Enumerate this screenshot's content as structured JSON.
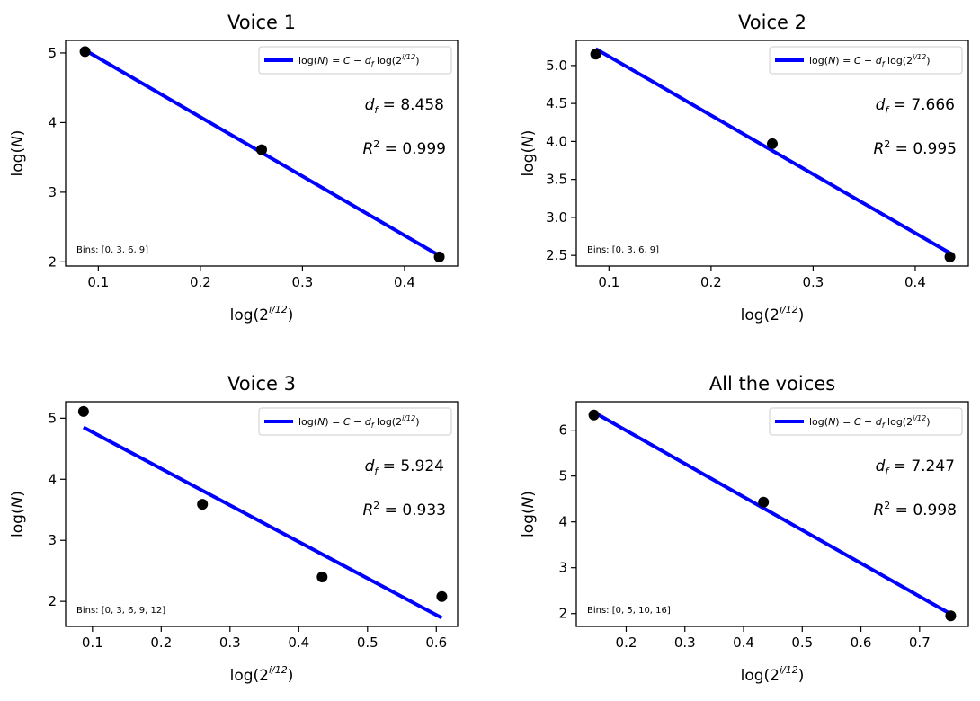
{
  "chart_data": [
    {
      "type": "scatter",
      "title": "Voice 1",
      "xlabel": "log(2^{i/12})",
      "ylabel": "log(N)",
      "xlim": [
        0.068,
        0.452
      ],
      "ylim": [
        1.94,
        5.18
      ],
      "xticks": [
        0.1,
        0.2,
        0.3,
        0.4
      ],
      "xtick_labels": [
        "0.1",
        "0.2",
        "0.3",
        "0.4"
      ],
      "yticks": [
        2,
        3,
        4,
        5
      ],
      "ytick_labels": [
        "2",
        "3",
        "4",
        "5"
      ],
      "points": {
        "x": [
          0.087,
          0.26,
          0.434
        ],
        "y": [
          5.02,
          3.61,
          2.07
        ]
      },
      "fit": {
        "x": [
          0.087,
          0.434
        ],
        "y": [
          5.04,
          2.09
        ]
      },
      "legend": "log(N) = C − d_f log(2^{i/12})",
      "legend_position": "upper right",
      "df_label": "d_f = 8.458",
      "r2_label": "R² = 0.999",
      "bins_label": "Bins: [0, 3, 6, 9]"
    },
    {
      "type": "scatter",
      "title": "Voice 2",
      "xlabel": "log(2^{i/12})",
      "ylabel": "log(N)",
      "xlim": [
        0.068,
        0.452
      ],
      "ylim": [
        2.36,
        5.33
      ],
      "xticks": [
        0.1,
        0.2,
        0.3,
        0.4
      ],
      "xtick_labels": [
        "0.1",
        "0.2",
        "0.3",
        "0.4"
      ],
      "yticks": [
        2.5,
        3.0,
        3.5,
        4.0,
        4.5,
        5.0
      ],
      "ytick_labels": [
        "2.5",
        "3.0",
        "3.5",
        "4.0",
        "4.5",
        "5.0"
      ],
      "points": {
        "x": [
          0.087,
          0.26,
          0.434
        ],
        "y": [
          5.15,
          3.97,
          2.48
        ]
      },
      "fit": {
        "x": [
          0.087,
          0.434
        ],
        "y": [
          5.22,
          2.53
        ]
      },
      "legend": "log(N) = C − d_f log(2^{i/12})",
      "legend_position": "upper right",
      "df_label": "d_f = 7.666",
      "r2_label": "R² = 0.995",
      "bins_label": "Bins: [0, 3, 6, 9]"
    },
    {
      "type": "scatter",
      "title": "Voice 3",
      "xlabel": "log(2^{i/12})",
      "ylabel": "log(N)",
      "xlim": [
        0.061,
        0.631
      ],
      "ylim": [
        1.59,
        5.27
      ],
      "xticks": [
        0.1,
        0.2,
        0.3,
        0.4,
        0.5,
        0.6
      ],
      "xtick_labels": [
        "0.1",
        "0.2",
        "0.3",
        "0.4",
        "0.5",
        "0.6"
      ],
      "yticks": [
        2,
        3,
        4,
        5
      ],
      "ytick_labels": [
        "2",
        "3",
        "4",
        "5"
      ],
      "points": {
        "x": [
          0.087,
          0.26,
          0.434,
          0.608
        ],
        "y": [
          5.11,
          3.59,
          2.4,
          2.08
        ]
      },
      "fit": {
        "x": [
          0.087,
          0.608
        ],
        "y": [
          4.85,
          1.73
        ]
      },
      "legend": "log(N) = C − d_f log(2^{i/12})",
      "legend_position": "upper right",
      "df_label": "d_f = 5.924",
      "r2_label": "R² = 0.933",
      "bins_label": "Bins: [0, 3, 6, 9, 12]"
    },
    {
      "type": "scatter",
      "title": "All the voices",
      "xlabel": "log(2^{i/12})",
      "ylabel": "log(N)",
      "xlim": [
        0.115,
        0.783
      ],
      "ylim": [
        1.72,
        6.62
      ],
      "xticks": [
        0.2,
        0.3,
        0.4,
        0.5,
        0.6,
        0.7
      ],
      "xtick_labels": [
        "0.2",
        "0.3",
        "0.4",
        "0.5",
        "0.6",
        "0.7"
      ],
      "yticks": [
        2,
        3,
        4,
        5,
        6
      ],
      "ytick_labels": [
        "2",
        "3",
        "4",
        "5",
        "6"
      ],
      "points": {
        "x": [
          0.145,
          0.434,
          0.753
        ],
        "y": [
          6.33,
          4.43,
          1.95
        ]
      },
      "fit": {
        "x": [
          0.145,
          0.753
        ],
        "y": [
          6.39,
          1.99
        ]
      },
      "legend": "log(N) = C − d_f log(2^{i/12})",
      "legend_position": "upper right",
      "df_label": "d_f = 7.247",
      "r2_label": "R² = 0.998",
      "bins_label": "Bins: [0, 5, 10, 16]"
    }
  ],
  "colors": {
    "fit_line": "#0000ff",
    "points": "#000000",
    "axes": "#000000"
  },
  "labels": {
    "xlabel_prefix": "log(2",
    "xlabel_exp": "i/12",
    "xlabel_suffix": ")"
  }
}
